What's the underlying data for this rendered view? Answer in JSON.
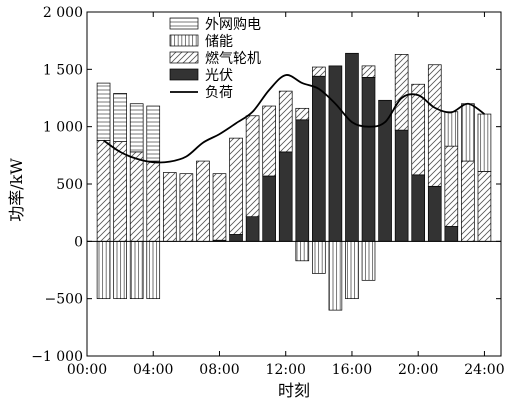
{
  "chart_data": {
    "type": "bar",
    "xlabel": "时刻",
    "ylabel": "功率/kW",
    "ylim": [
      -1000,
      2000
    ],
    "yticks": [
      "−1 000",
      "−500",
      "0",
      "500",
      "1 000",
      "1 500",
      "2 000"
    ],
    "ytick_values": [
      -1000,
      -500,
      0,
      500,
      1000,
      1500,
      2000
    ],
    "xlim": [
      0,
      25
    ],
    "xticks": [
      "00:00",
      "04:00",
      "08:00",
      "12:00",
      "16:00",
      "20:00",
      "24:00"
    ],
    "xtick_values": [
      0,
      4,
      8,
      12,
      16,
      20,
      24
    ],
    "stacking": "positive and negative parts stacked separately per hour",
    "legend_position": "top-left",
    "grid": false,
    "hours": [
      1,
      2,
      3,
      4,
      5,
      6,
      7,
      8,
      9,
      10,
      11,
      12,
      13,
      14,
      15,
      16,
      17,
      18,
      19,
      20,
      21,
      22,
      23,
      24
    ],
    "series": [
      {
        "name": "外网购电",
        "pattern": "horizontal-lines",
        "values": [
          500,
          420,
          420,
          480,
          0,
          0,
          0,
          0,
          0,
          0,
          0,
          0,
          0,
          0,
          0,
          0,
          0,
          0,
          0,
          0,
          0,
          0,
          0,
          0
        ]
      },
      {
        "name": "储能",
        "pattern": "vertical-lines",
        "values": [
          -500,
          -500,
          -500,
          -500,
          0,
          0,
          0,
          0,
          0,
          0,
          0,
          0,
          -170,
          -280,
          -600,
          -500,
          -340,
          0,
          0,
          0,
          0,
          300,
          500,
          500
        ]
      },
      {
        "name": "燃气轮机",
        "pattern": "diagonal-lines",
        "values": [
          880,
          870,
          780,
          700,
          600,
          590,
          700,
          580,
          840,
          880,
          610,
          530,
          100,
          80,
          0,
          0,
          100,
          0,
          660,
          790,
          1060,
          700,
          700,
          610
        ]
      },
      {
        "name": "光伏",
        "pattern": "solid",
        "values": [
          0,
          0,
          0,
          0,
          0,
          0,
          0,
          10,
          60,
          215,
          570,
          780,
          1060,
          1440,
          1530,
          1640,
          1430,
          1230,
          970,
          580,
          480,
          130,
          0,
          0
        ]
      }
    ],
    "load_line": {
      "name": "负荷",
      "x": [
        1,
        2,
        3,
        4,
        5,
        6,
        7,
        8,
        9,
        10,
        11,
        12,
        13,
        14,
        15,
        16,
        17,
        18,
        19,
        20,
        21,
        22,
        23,
        24
      ],
      "values": [
        880,
        780,
        720,
        690,
        695,
        740,
        860,
        935,
        1030,
        1130,
        1320,
        1450,
        1380,
        1330,
        1200,
        1040,
        1000,
        1040,
        1250,
        1275,
        1165,
        1125,
        1200,
        1110
      ]
    }
  },
  "colors": {
    "bar_fill": "#ffffff",
    "pv_fill": "#333333",
    "stroke": "#000000",
    "hatch": "#555555"
  }
}
